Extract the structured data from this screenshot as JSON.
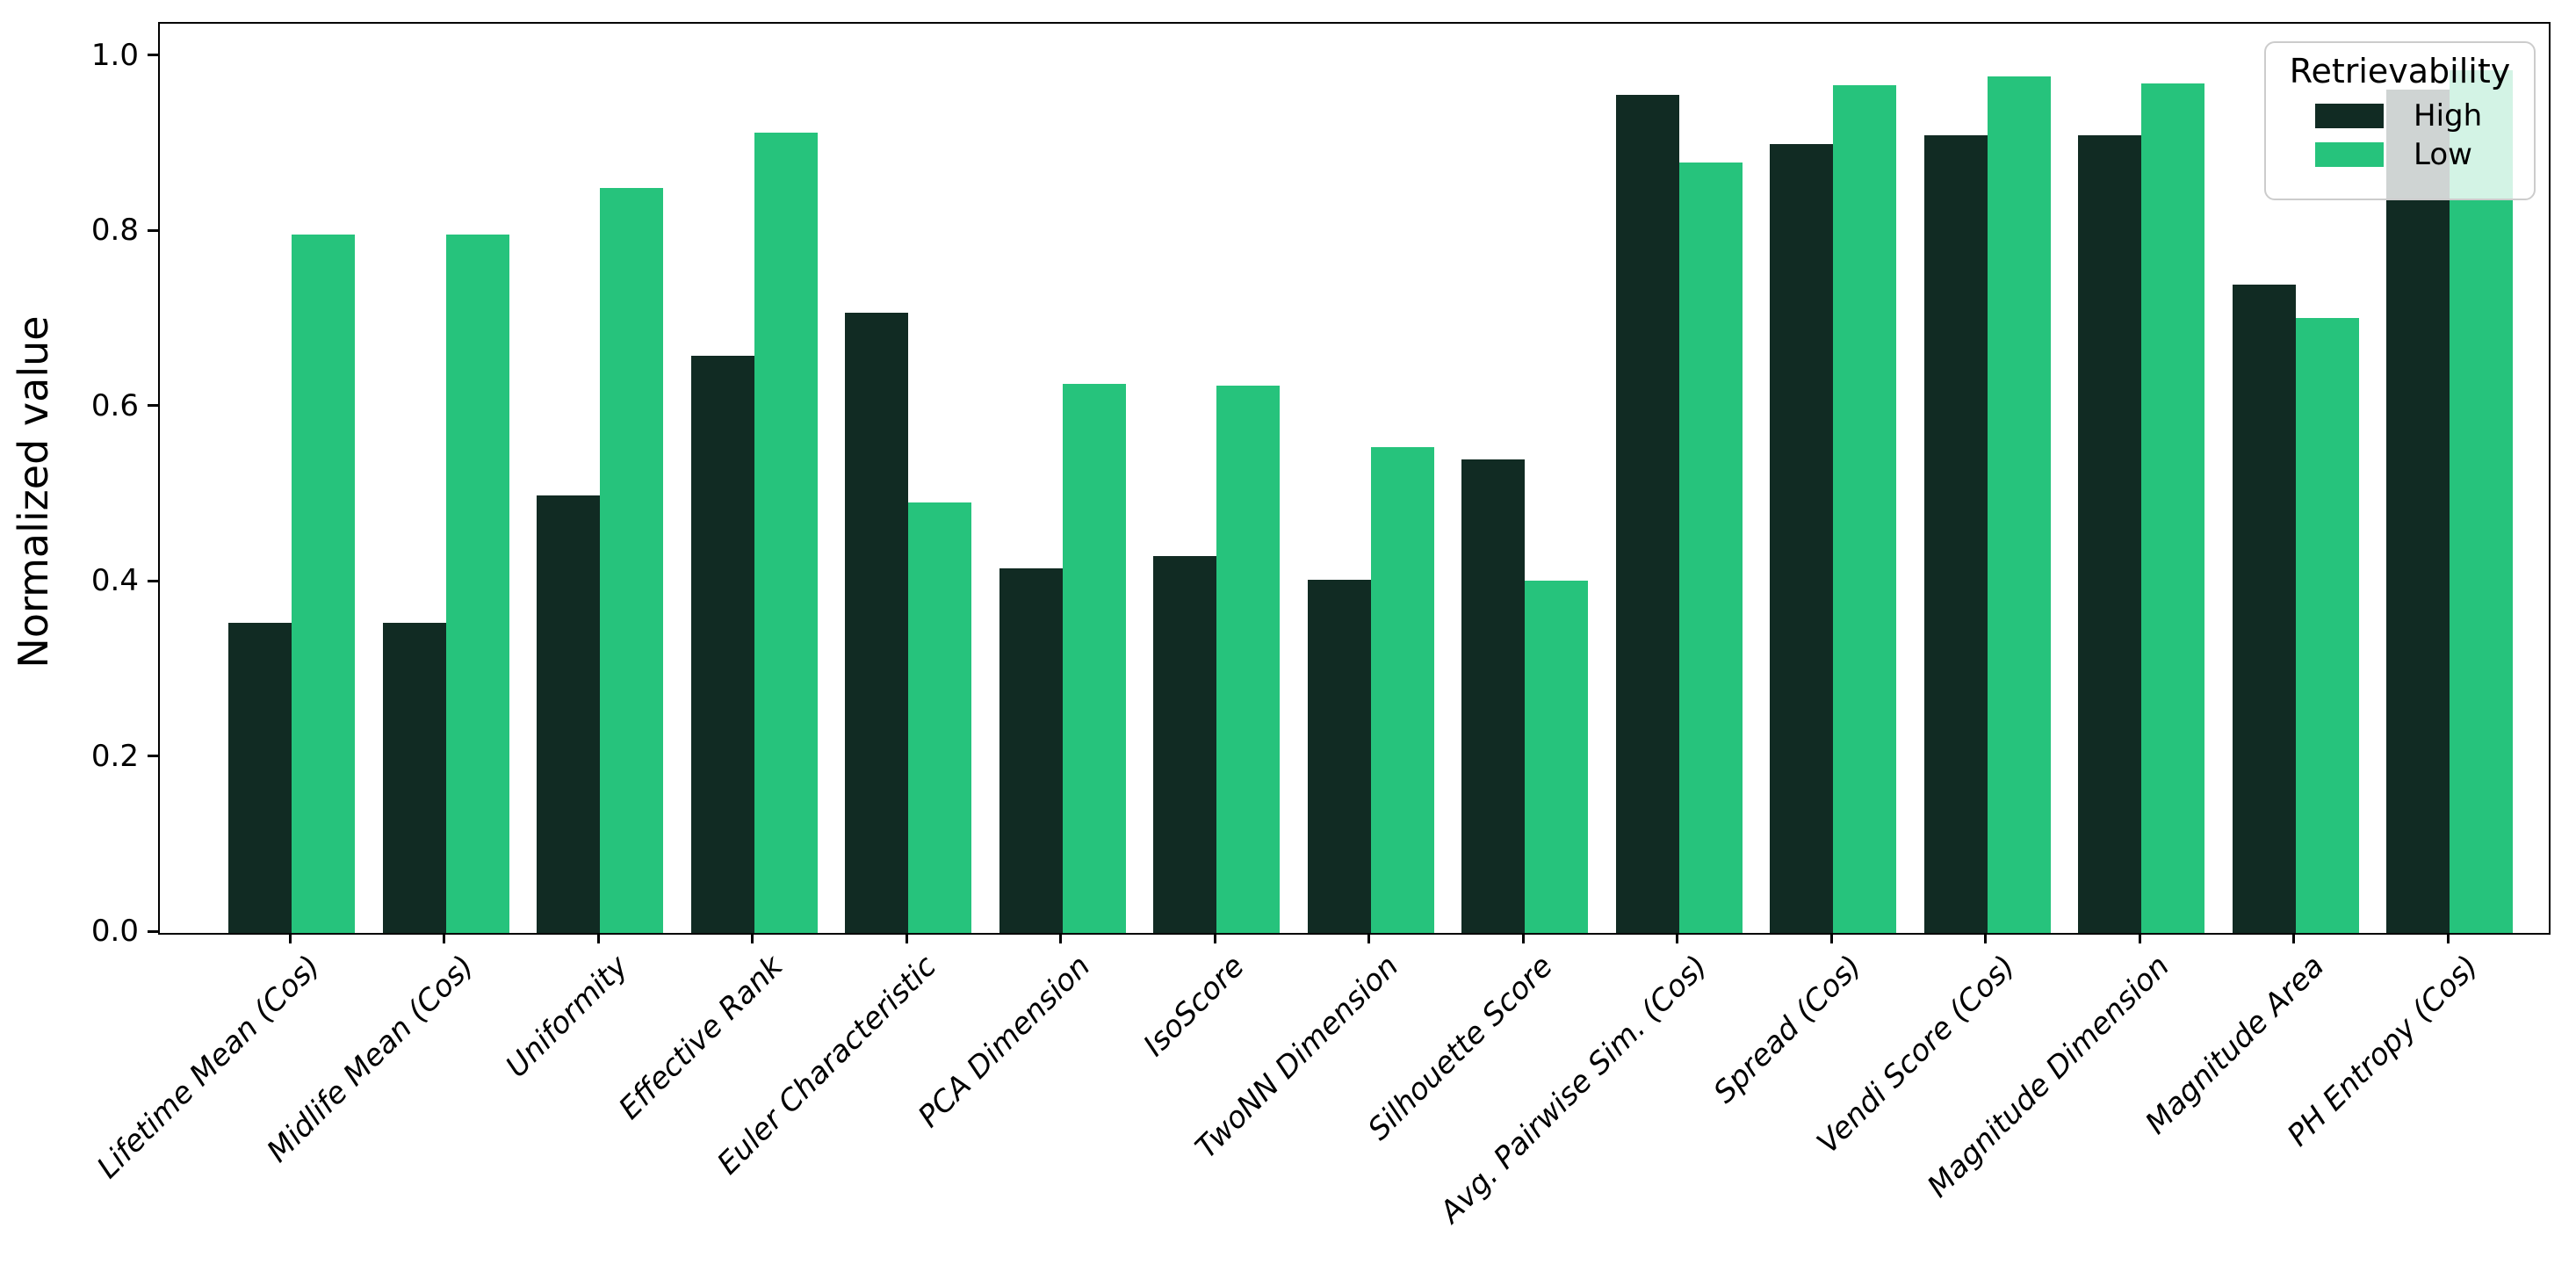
{
  "chart_data": {
    "type": "bar",
    "title": "",
    "xlabel": "",
    "ylabel": "Normalized value",
    "ylim": [
      0,
      1.038
    ],
    "yticks": [
      0.0,
      0.2,
      0.4,
      0.6,
      0.8,
      1.0
    ],
    "ytick_labels": [
      "0.0",
      "0.2",
      "0.4",
      "0.6",
      "0.8",
      "1.0"
    ],
    "grid": false,
    "xtick_label_style": "italic",
    "categories": [
      "Lifetime Mean (Cos)",
      "Midlife Mean (Cos)",
      "Uniformity",
      "Effective Rank",
      "Euler Characteristic",
      "PCA Dimension",
      "IsoScore",
      "TwoNN Dimension",
      "Silhouette Score",
      "Avg. Pairwise Sim. (Cos)",
      "Spread (Cos)",
      "Vendi Score (Cos)",
      "Magnitude Dimension",
      "Magnitude Area",
      "PH Entropy (Cos)"
    ],
    "series": [
      {
        "name": "High",
        "color": "#112b23",
        "values": [
          0.354,
          0.354,
          0.499,
          0.659,
          0.708,
          0.416,
          0.43,
          0.403,
          0.541,
          0.957,
          0.901,
          0.911,
          0.911,
          0.74,
          0.963
        ]
      },
      {
        "name": "Low",
        "color": "#26c37c",
        "values": [
          0.797,
          0.797,
          0.85,
          0.914,
          0.491,
          0.627,
          0.625,
          0.555,
          0.402,
          0.88,
          0.968,
          0.978,
          0.97,
          0.702,
          0.985
        ]
      }
    ],
    "legend": {
      "title": "Retrievability",
      "position": "upper right",
      "entries": [
        "High",
        "Low"
      ]
    }
  }
}
